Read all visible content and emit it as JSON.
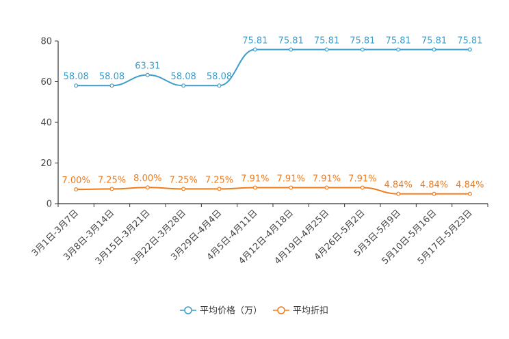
{
  "chart_data": {
    "type": "line",
    "categories": [
      "3月1日-3月7日",
      "3月8日-3月14日",
      "3月15日-3月21日",
      "3月22日-3月28日",
      "3月29日-4月4日",
      "4月5日-4月11日",
      "4月12日-4月18日",
      "4月19日-4月25日",
      "4月26日-5月2日",
      "5月3日-5月9日",
      "5月10日-5月16日",
      "5月17日-5月23日"
    ],
    "ylim": [
      0,
      80
    ],
    "yticks": [
      0,
      20,
      40,
      60,
      80
    ],
    "ytick_labels": [
      "0",
      "20",
      "40",
      "60",
      "80"
    ],
    "legend_position": "bottom-center",
    "series": [
      {
        "name": "平均价格（万）",
        "color": "#3c9cca",
        "values": [
          58.08,
          58.08,
          63.31,
          58.08,
          58.08,
          75.81,
          75.81,
          75.81,
          75.81,
          75.81,
          75.81,
          75.81
        ],
        "labels": [
          "58.08",
          "58.08",
          "63.31",
          "58.08",
          "58.08",
          "75.81",
          "75.81",
          "75.81",
          "75.81",
          "75.81",
          "75.81",
          "75.81"
        ]
      },
      {
        "name": "平均折扣",
        "color": "#f07b1a",
        "values": [
          7.0,
          7.25,
          8.0,
          7.25,
          7.25,
          7.91,
          7.91,
          7.91,
          7.91,
          4.84,
          4.84,
          4.84
        ],
        "labels": [
          "7.00%",
          "7.25%",
          "8.00%",
          "7.25%",
          "7.25%",
          "7.91%",
          "7.91%",
          "7.91%",
          "7.91%",
          "4.84%",
          "4.84%",
          "4.84%"
        ]
      }
    ]
  }
}
